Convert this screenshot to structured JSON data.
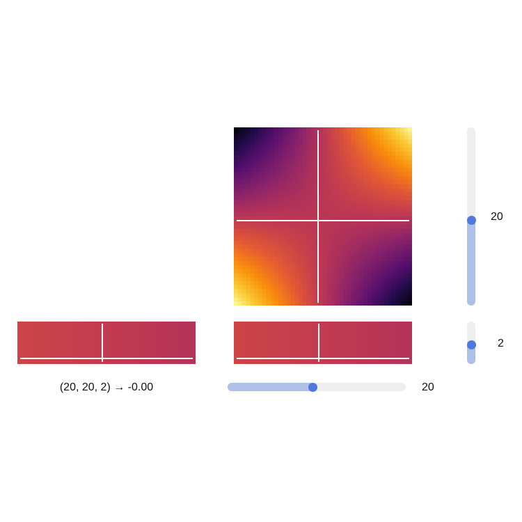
{
  "colormap": "inferno",
  "slider_colors": {
    "track": "#eeeeee",
    "fill": "#aec0e8",
    "thumb": "#4f79dc"
  },
  "slices": {
    "xy": {
      "rows": 44,
      "cols": 44,
      "value_range": [
        -1,
        1
      ],
      "crosshair_row": 22,
      "crosshair_col": 20
    },
    "xz_left": {
      "rows": 10,
      "cols": 44,
      "value": -0.0,
      "crosshair_row": 9,
      "crosshair_col": 20
    },
    "xz_right": {
      "rows": 10,
      "cols": 44,
      "value": -0.0,
      "crosshair_row": 9,
      "crosshair_col": 20
    }
  },
  "sliders": {
    "y_vertical": {
      "value": "20",
      "fraction": 0.48
    },
    "z_vertical": {
      "value": "2",
      "fraction": 0.45
    },
    "x_horizontal": {
      "value": "20",
      "fraction": 0.48
    }
  },
  "readout": "(20, 20, 2) → -0.00"
}
